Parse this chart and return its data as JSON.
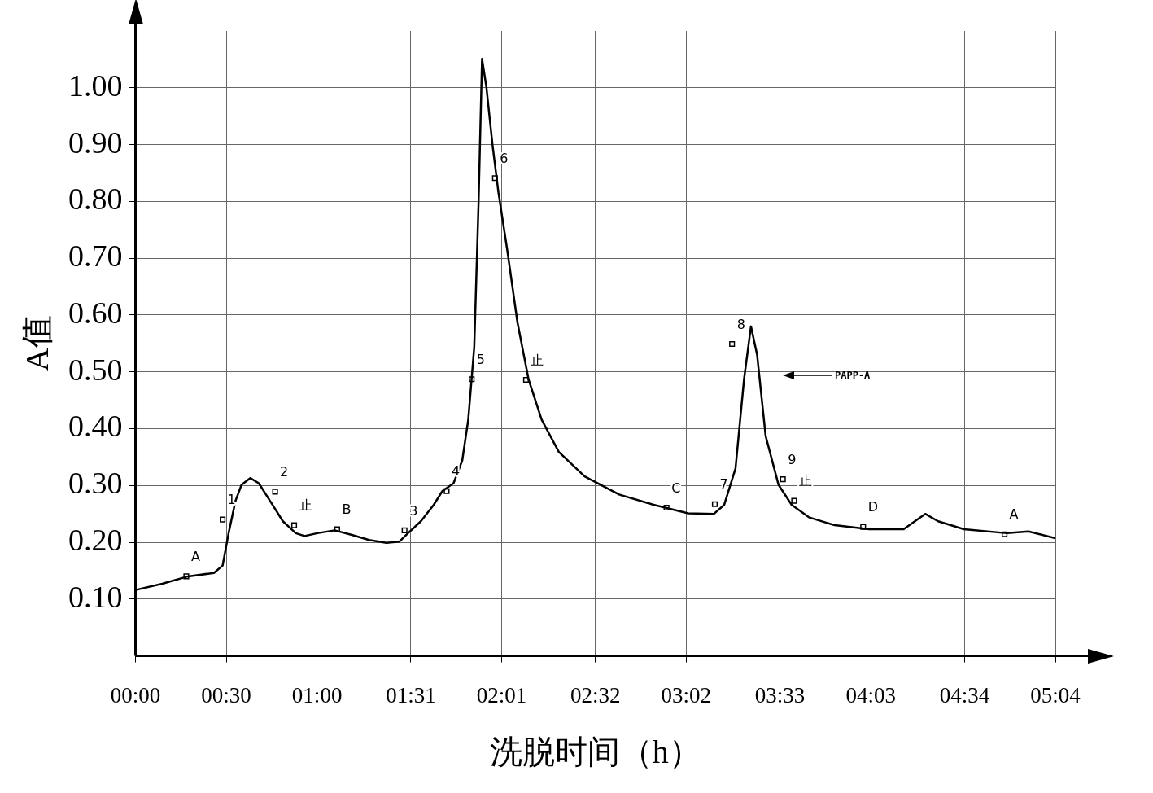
{
  "chart_data": {
    "type": "line",
    "xlabel": "洗脱时间（h）",
    "ylabel": "A值",
    "xlim": [
      0,
      5.0667
    ],
    "xticks": [
      {
        "value": 0,
        "label": "00:00"
      },
      {
        "value": 0.5,
        "label": "00:30"
      },
      {
        "value": 1.0,
        "label": "01:00"
      },
      {
        "value": 1.5167,
        "label": "01:31"
      },
      {
        "value": 2.0167,
        "label": "02:01"
      },
      {
        "value": 2.5333,
        "label": "02:32"
      },
      {
        "value": 3.0333,
        "label": "03:02"
      },
      {
        "value": 3.55,
        "label": "03:33"
      },
      {
        "value": 4.05,
        "label": "04:03"
      },
      {
        "value": 4.5667,
        "label": "04:34"
      },
      {
        "value": 5.0667,
        "label": "05:04"
      }
    ],
    "ylim": [
      0,
      1.1
    ],
    "yticks": [
      {
        "value": 0.1,
        "label": "0.10"
      },
      {
        "value": 0.2,
        "label": "0.20"
      },
      {
        "value": 0.3,
        "label": "0.30"
      },
      {
        "value": 0.4,
        "label": "0.40"
      },
      {
        "value": 0.5,
        "label": "0.50"
      },
      {
        "value": 0.6,
        "label": "0.60"
      },
      {
        "value": 0.7,
        "label": "0.70"
      },
      {
        "value": 0.8,
        "label": "0.80"
      },
      {
        "value": 0.9,
        "label": "0.90"
      },
      {
        "value": 1.0,
        "label": "1.00"
      }
    ],
    "grid": true,
    "legend": false,
    "series": [
      {
        "color": "#000000",
        "marker": "none",
        "line_style": "solid",
        "x": [
          0,
          0.147,
          0.29,
          0.432,
          0.48,
          0.513,
          0.551,
          0.584,
          0.632,
          0.679,
          0.741,
          0.812,
          0.883,
          0.931,
          1.002,
          1.097,
          1.192,
          1.287,
          1.382,
          1.453,
          1.501,
          1.572,
          1.643,
          1.69,
          1.752,
          1.8,
          1.833,
          1.866,
          1.89,
          1.909,
          1.933,
          1.966,
          1.999,
          2.047,
          2.104,
          2.165,
          2.237,
          2.332,
          2.474,
          2.664,
          2.854,
          3.044,
          3.186,
          3.243,
          3.305,
          3.352,
          3.39,
          3.424,
          3.471,
          3.542,
          3.614,
          3.709,
          3.851,
          4.041,
          4.231,
          4.35,
          4.421,
          4.563,
          4.8,
          4.919,
          5.0667
        ],
        "values": [
          0.116,
          0.127,
          0.14,
          0.146,
          0.159,
          0.216,
          0.273,
          0.301,
          0.313,
          0.304,
          0.273,
          0.237,
          0.216,
          0.211,
          0.216,
          0.221,
          0.213,
          0.204,
          0.199,
          0.201,
          0.216,
          0.237,
          0.266,
          0.29,
          0.304,
          0.344,
          0.416,
          0.544,
          0.801,
          1.051,
          1.001,
          0.901,
          0.816,
          0.716,
          0.587,
          0.487,
          0.416,
          0.359,
          0.316,
          0.284,
          0.266,
          0.251,
          0.25,
          0.266,
          0.33,
          0.487,
          0.58,
          0.53,
          0.387,
          0.301,
          0.266,
          0.244,
          0.23,
          0.223,
          0.223,
          0.25,
          0.237,
          0.223,
          0.216,
          0.219,
          0.207
        ]
      },
      {
        "type": "scatter",
        "color": "#000000",
        "marker": "square",
        "x": [
          0.28,
          0.48,
          0.769,
          0.874,
          1.111,
          1.482,
          1.714,
          1.852,
          1.98,
          2.151,
          2.925,
          3.191,
          3.286,
          3.566,
          3.628,
          4.008,
          4.787
        ],
        "values": [
          0.14,
          0.24,
          0.289,
          0.23,
          0.223,
          0.221,
          0.29,
          0.487,
          0.841,
          0.486,
          0.261,
          0.267,
          0.549,
          0.311,
          0.273,
          0.227,
          0.214
        ]
      }
    ],
    "annotations": [
      {
        "text": "A",
        "x": 0.28,
        "y": 0.14
      },
      {
        "text": "1",
        "x": 0.48,
        "y": 0.24
      },
      {
        "text": "2",
        "x": 0.769,
        "y": 0.289
      },
      {
        "text": "止",
        "x": 0.874,
        "y": 0.23
      },
      {
        "text": "B",
        "x": 1.111,
        "y": 0.223
      },
      {
        "text": "3",
        "x": 1.482,
        "y": 0.221
      },
      {
        "text": "4",
        "x": 1.714,
        "y": 0.29
      },
      {
        "text": "5",
        "x": 1.852,
        "y": 0.487
      },
      {
        "text": "6",
        "x": 1.98,
        "y": 0.841
      },
      {
        "text": "止",
        "x": 2.151,
        "y": 0.486
      },
      {
        "text": "C",
        "x": 2.925,
        "y": 0.261
      },
      {
        "text": "7",
        "x": 3.191,
        "y": 0.267
      },
      {
        "text": "8",
        "x": 3.286,
        "y": 0.549
      },
      {
        "text": "9",
        "x": 3.566,
        "y": 0.311
      },
      {
        "text": "止",
        "x": 3.628,
        "y": 0.273
      },
      {
        "text": "D",
        "x": 4.008,
        "y": 0.227
      },
      {
        "text": "A",
        "x": 4.787,
        "y": 0.214
      },
      "PAPP-A"
    ]
  }
}
